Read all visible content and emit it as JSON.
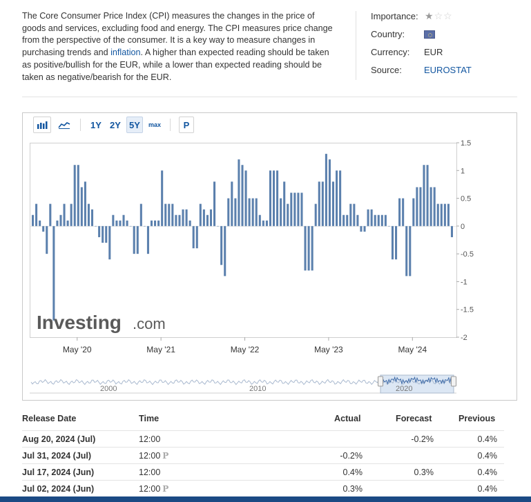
{
  "description": {
    "text_before": "The Core Consumer Price Index (CPI) measures the changes in the price of goods and services, excluding food and energy. The CPI measures price change from the perspective of the consumer. It is a key way to measure changes in purchasing trends and ",
    "link_text": "inflation",
    "text_after": ". A higher than expected reading should be taken as positive/bullish for the EUR, while a lower than expected reading should be taken as negative/bearish for the EUR."
  },
  "meta": {
    "importance_label": "Importance:",
    "importance_stars": 1,
    "importance_max": 3,
    "country_label": "Country:",
    "country_flag_icon": "eu-flag-icon",
    "currency_label": "Currency:",
    "currency_value": "EUR",
    "source_label": "Source:",
    "source_value": "EUROSTAT"
  },
  "toolbar": {
    "bar_chart_icon": "bar-chart-icon",
    "line_chart_icon": "line-chart-icon",
    "ranges": [
      "1Y",
      "2Y",
      "5Y",
      "max"
    ],
    "active_range": "5Y",
    "p_label": "P"
  },
  "chart_data": {
    "type": "bar",
    "title": "",
    "xlabel": "",
    "ylabel": "",
    "ylim": [
      -2,
      1.5
    ],
    "y_ticks": [
      1.5,
      1,
      0.5,
      0,
      -0.5,
      -1,
      -1.5,
      -2
    ],
    "x_tick_labels": [
      "May '20",
      "May '21",
      "May '22",
      "May '23",
      "May '24"
    ],
    "watermark_brand": "Investing",
    "watermark_domain": ".com",
    "bar_color": "#5b80ad",
    "values": [
      0.2,
      0.4,
      0.1,
      -0.1,
      -0.5,
      0.4,
      -1.7,
      0.1,
      0.2,
      0.4,
      0.1,
      0.4,
      1.1,
      1.1,
      0.7,
      0.8,
      0.4,
      0.3,
      0.0,
      -0.2,
      -0.3,
      -0.3,
      -0.6,
      0.2,
      0.1,
      0.1,
      0.2,
      0.1,
      0.0,
      -0.5,
      -0.5,
      0.4,
      0.0,
      -0.5,
      0.1,
      0.1,
      0.1,
      1.0,
      0.4,
      0.4,
      0.4,
      0.2,
      0.2,
      0.3,
      0.3,
      0.1,
      -0.4,
      -0.4,
      0.4,
      0.3,
      0.2,
      0.3,
      0.8,
      0.0,
      -0.7,
      -0.9,
      0.5,
      0.8,
      0.5,
      1.2,
      1.1,
      1.0,
      0.5,
      0.5,
      0.5,
      0.2,
      0.1,
      0.1,
      1.0,
      1.0,
      1.0,
      0.5,
      0.8,
      0.4,
      0.6,
      0.6,
      0.6,
      0.6,
      -0.8,
      -0.8,
      -0.8,
      0.4,
      0.8,
      0.8,
      1.3,
      1.2,
      0.8,
      1.0,
      1.0,
      0.2,
      0.2,
      0.4,
      0.4,
      0.2,
      -0.1,
      -0.1,
      0.3,
      0.3,
      0.2,
      0.2,
      0.2,
      0.2,
      0.0,
      -0.6,
      -0.6,
      0.5,
      0.5,
      -0.9,
      -0.9,
      0.5,
      0.7,
      0.7,
      1.1,
      1.1,
      0.7,
      0.7,
      0.4,
      0.4,
      0.4,
      0.4,
      -0.2
    ],
    "navigator_labels": [
      "2000",
      "2010",
      "2020"
    ]
  },
  "table": {
    "headers": [
      "Release Date",
      "Time",
      "Actual",
      "Forecast",
      "Previous"
    ],
    "rows": [
      {
        "date": "Aug 20, 2024 (Jul)",
        "time": "12:00",
        "preliminary": false,
        "actual": "",
        "actual_color": "",
        "forecast": "-0.2%",
        "previous": "0.4%"
      },
      {
        "date": "Jul 31, 2024 (Jul)",
        "time": "12:00",
        "preliminary": true,
        "actual": "-0.2%",
        "actual_color": "",
        "forecast": "",
        "previous": "0.4%"
      },
      {
        "date": "Jul 17, 2024 (Jun)",
        "time": "12:00",
        "preliminary": false,
        "actual": "0.4%",
        "actual_color": "green",
        "forecast": "0.3%",
        "previous": "0.4%"
      },
      {
        "date": "Jul 02, 2024 (Jun)",
        "time": "12:00",
        "preliminary": true,
        "actual": "0.3%",
        "actual_color": "",
        "forecast": "",
        "previous": "0.4%"
      }
    ],
    "preliminary_mark": "P"
  }
}
